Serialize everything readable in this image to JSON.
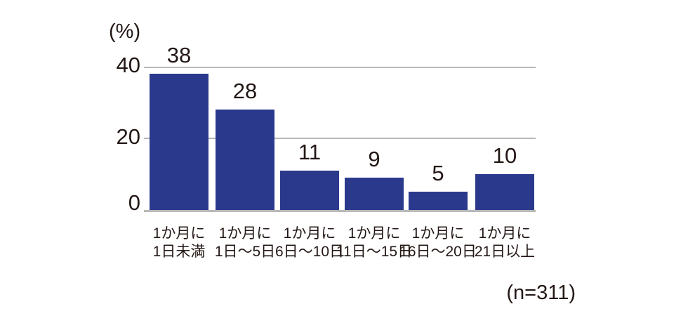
{
  "chart_data": {
    "type": "bar",
    "title": "",
    "unit_label": "(%)",
    "xlabel": "",
    "ylabel": "",
    "ylim": [
      0,
      40
    ],
    "yticks": [
      0,
      20,
      40
    ],
    "grid": "horizontal",
    "legend_position": "none",
    "categories": [
      [
        "1か月に",
        "1日未満"
      ],
      [
        "1か月に",
        "1日〜5日"
      ],
      [
        "1か月に",
        "6日〜10日"
      ],
      [
        "1か月に",
        "11日〜15日"
      ],
      [
        "1か月に",
        "16日〜20日"
      ],
      [
        "1か月に",
        "21日以上"
      ]
    ],
    "values": [
      38,
      28,
      11,
      9,
      5,
      10
    ],
    "sample_size_label": "(n=311)",
    "colors": {
      "bar": "#2b398d",
      "gridline": "#b9b9b9",
      "text": "#231815"
    }
  }
}
